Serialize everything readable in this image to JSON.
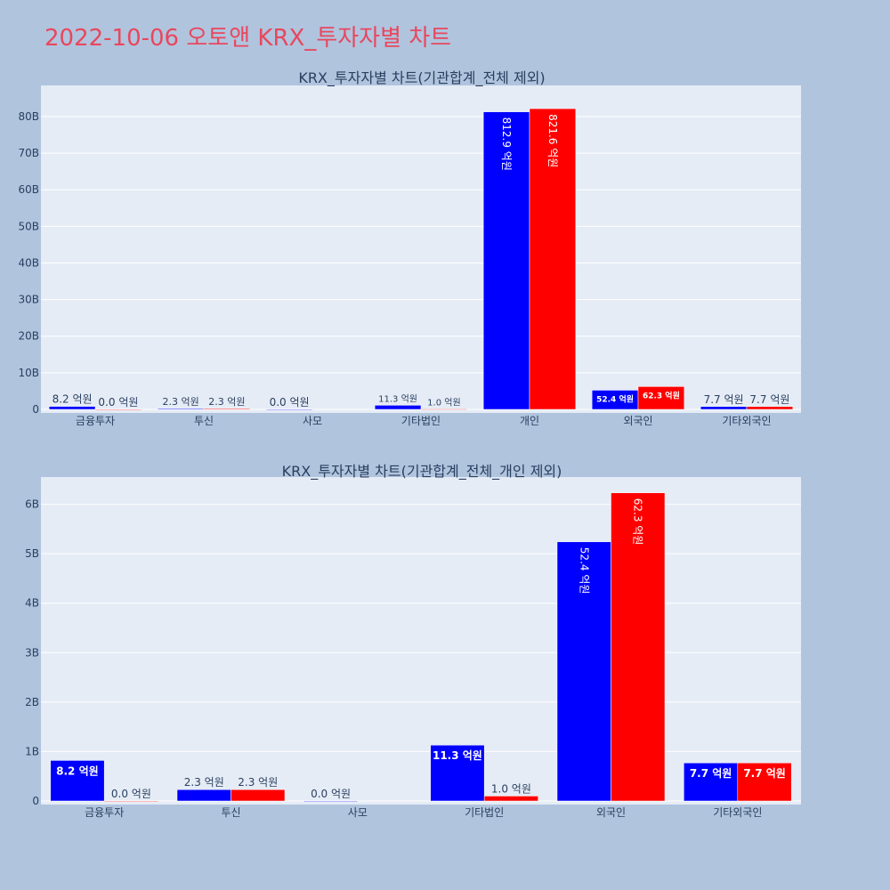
{
  "page_title": "2022-10-06 오토앤 KRX_투자자별 차트",
  "colors": {
    "background": "#b0c4de",
    "plot_bg": "#e5ecf6",
    "title": "#e8475d",
    "series1": "#0000ff",
    "series2": "#ff0000"
  },
  "chart_data": [
    {
      "type": "bar",
      "title": "KRX_투자자별 차트(기관합계_전체 제외)",
      "categories": [
        "금융투자",
        "투신",
        "사모",
        "기타법인",
        "개인",
        "외국인",
        "기타외국인"
      ],
      "series": [
        {
          "values": [
            0.82,
            0.23,
            0.0,
            1.13,
            81.29,
            5.24,
            0.77
          ],
          "labels": [
            "8.2 억원",
            "2.3 억원",
            "0.0 억원",
            "11.3 억원",
            "812.9 억원",
            "52.4 억원",
            "7.7 억원"
          ]
        },
        {
          "values": [
            0.0,
            0.23,
            null,
            0.1,
            82.16,
            6.23,
            0.77
          ],
          "labels": [
            "0.0 억원",
            "2.3 억원",
            "",
            "1.0 억원",
            "821.6 억원",
            "62.3 억원",
            "7.7 억원"
          ]
        }
      ],
      "yticks": [
        "0",
        "10B",
        "20B",
        "30B",
        "40B",
        "50B",
        "60B",
        "70B",
        "80B"
      ],
      "ylim": [
        0,
        88.5
      ],
      "grid": true
    },
    {
      "type": "bar",
      "title": "KRX_투자자별 차트(기관합계_전체_개인 제외)",
      "categories": [
        "금융투자",
        "투신",
        "사모",
        "기타법인",
        "외국인",
        "기타외국인"
      ],
      "series": [
        {
          "values": [
            0.82,
            0.23,
            0.0,
            1.13,
            5.24,
            0.77
          ],
          "labels": [
            "8.2 억원",
            "2.3 억원",
            "0.0 억원",
            "11.3 억원",
            "52.4 억원",
            "7.7 억원"
          ]
        },
        {
          "values": [
            0.0,
            0.23,
            null,
            0.1,
            6.23,
            0.77
          ],
          "labels": [
            "0.0 억원",
            "2.3 억원",
            "",
            "1.0 억원",
            "62.3 억원",
            "7.7 억원"
          ]
        }
      ],
      "yticks": [
        "0",
        "1B",
        "2B",
        "3B",
        "4B",
        "5B",
        "6B"
      ],
      "ylim": [
        0,
        6.55
      ],
      "grid": true
    }
  ]
}
